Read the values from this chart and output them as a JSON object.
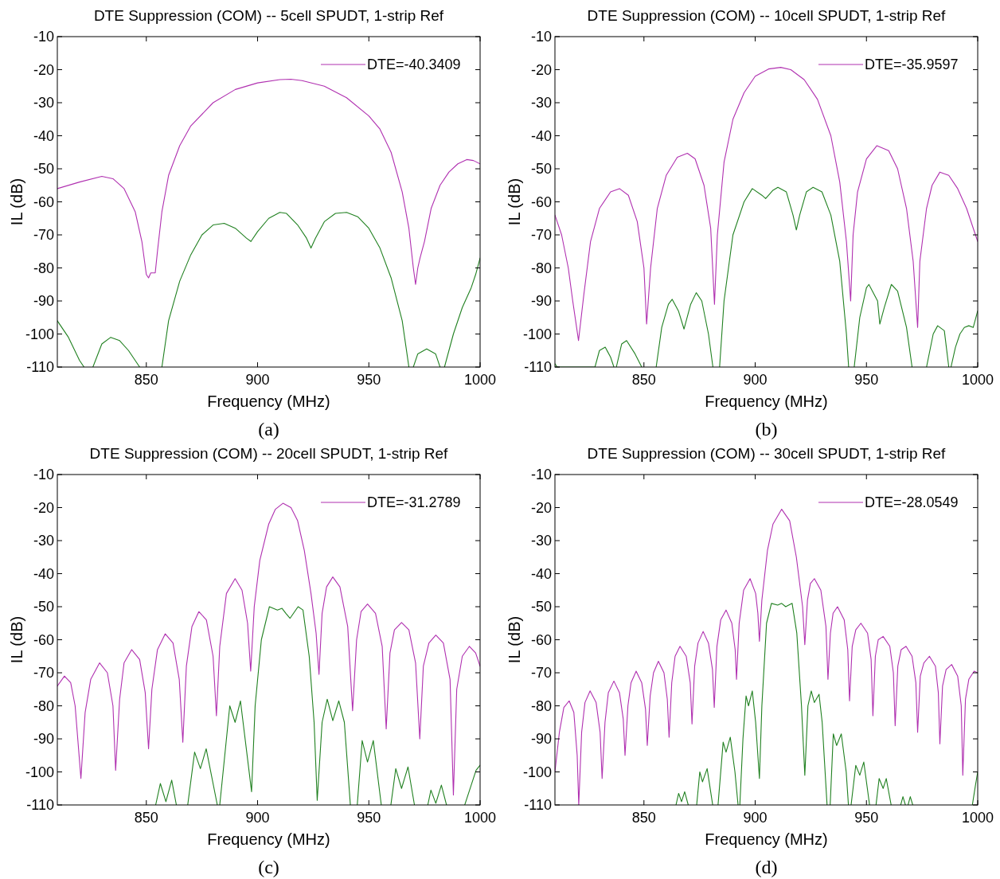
{
  "chart_data": [
    {
      "type": "line",
      "title": "DTE Suppression (COM) -- 5cell SPUDT, 1-strip Ref",
      "xlabel": "Frequency (MHz)",
      "ylabel": "IL (dB)",
      "annotations": [
        "(a)"
      ],
      "xlim": [
        810,
        1000
      ],
      "ylim": [
        -110,
        -10
      ],
      "xticks": [
        850,
        900,
        950,
        1000
      ],
      "yticks": [
        -110,
        -100,
        -90,
        -80,
        -70,
        -60,
        -50,
        -40,
        -30,
        -20,
        -10
      ],
      "legend": "top right",
      "series": [
        {
          "name": "DTE=-40.3409",
          "color": "#b030b0",
          "x": [
            810,
            820,
            830,
            835,
            840,
            845,
            848,
            850,
            851,
            852,
            854,
            855,
            857,
            860,
            865,
            870,
            880,
            890,
            900,
            910,
            915,
            920,
            930,
            940,
            950,
            955,
            960,
            965,
            968,
            970,
            971,
            972,
            973,
            975,
            978,
            982,
            986,
            990,
            994,
            997,
            1000
          ],
          "values": [
            -56,
            -54,
            -52.3,
            -53,
            -56,
            -63,
            -72,
            -82,
            -83,
            -81.5,
            -81.5,
            -75,
            -63,
            -52,
            -43,
            -37,
            -30,
            -26,
            -24,
            -23,
            -22.9,
            -23.3,
            -25,
            -28.5,
            -34,
            -38,
            -45,
            -57,
            -68,
            -80,
            -85,
            -80,
            -77,
            -72,
            -62,
            -55,
            -51,
            -48.5,
            -47.2,
            -47.5,
            -48.5
          ]
        },
        {
          "color": "#208020",
          "x": [
            810,
            815,
            820,
            822,
            824,
            826,
            830,
            834,
            838,
            842,
            847,
            852,
            857,
            860,
            865,
            870,
            875,
            880,
            885,
            890,
            895,
            897,
            900,
            905,
            910,
            913,
            918,
            922,
            924,
            926,
            930,
            935,
            940,
            945,
            950,
            955,
            960,
            965,
            968,
            969,
            970,
            972,
            976,
            980,
            982,
            983,
            984,
            988,
            992,
            996,
            998,
            1000
          ],
          "values": [
            -96,
            -101,
            -108,
            -110,
            null,
            -110,
            -103,
            -101,
            -102,
            -105,
            -110,
            null,
            -110,
            -96,
            -84,
            -76,
            -70,
            -67,
            -66.5,
            -68,
            -71,
            -72,
            -69,
            -65,
            -63.2,
            -63.5,
            -67,
            -71,
            -74,
            -71,
            -66,
            -63.5,
            -63.2,
            -64.5,
            -68,
            -74,
            -83,
            -96,
            -110,
            null,
            -110,
            -106,
            -104.5,
            -106,
            -110,
            null,
            -110,
            -100,
            -92,
            -86,
            -82,
            -77
          ]
        }
      ]
    },
    {
      "type": "line",
      "title": "DTE Suppression (COM) -- 10cell SPUDT, 1-strip Ref",
      "xlabel": "Frequency (MHz)",
      "ylabel": "IL (dB)",
      "annotations": [
        "(b)"
      ],
      "xlim": [
        810,
        1000
      ],
      "ylim": [
        -110,
        -10
      ],
      "xticks": [
        850,
        900,
        950,
        1000
      ],
      "yticks": [
        -110,
        -100,
        -90,
        -80,
        -70,
        -60,
        -50,
        -40,
        -30,
        -20,
        -10
      ],
      "legend": "top right",
      "series": [
        {
          "name": "DTE=-35.9597",
          "color": "#b030b0",
          "x": [
            810,
            813,
            816,
            818,
            820.6,
            823,
            826,
            830,
            835,
            839,
            843,
            847,
            850,
            851.2,
            853,
            856,
            860,
            865,
            869.5,
            873,
            877,
            880,
            881.7,
            883,
            886,
            890,
            895,
            900,
            906,
            911.5,
            916,
            922,
            928,
            934,
            938,
            941,
            942.9,
            944,
            946,
            950,
            954.7,
            960,
            964,
            968,
            971,
            973,
            974,
            977,
            979.5,
            983,
            987,
            991,
            995,
            998,
            1000
          ],
          "values": [
            -64,
            -70,
            -80,
            -90,
            -102,
            -88,
            -72,
            -62,
            -57,
            -56,
            -58,
            -66,
            -80,
            -97,
            -80,
            -62,
            -52,
            -46.5,
            -45.3,
            -47,
            -55,
            -68,
            -91,
            -70,
            -48,
            -35,
            -27,
            -22,
            -19.8,
            -19.3,
            -20,
            -23,
            -29,
            -40,
            -54,
            -72,
            -90,
            -70,
            -57,
            -47,
            -43,
            -44.5,
            -50,
            -62,
            -78,
            -98,
            -78,
            -62,
            -55,
            -51,
            -52,
            -56,
            -62,
            -68,
            -72
          ]
        },
        {
          "color": "#208020",
          "x": [
            810,
            811,
            828,
            830,
            832.6,
            835,
            836.5,
            837,
            837.6,
            840,
            842.2,
            846,
            849,
            852,
            855.5,
            858,
            861,
            862.7,
            865.5,
            868,
            871,
            873.5,
            876,
            879,
            881,
            882.5,
            884,
            886,
            890,
            895,
            898.7,
            903,
            904.7,
            908,
            910.2,
            914,
            917,
            918.5,
            920,
            923,
            926,
            930,
            934,
            938,
            941,
            942,
            943,
            944.5,
            947,
            950,
            951.1,
            955,
            956,
            958,
            961.2,
            964,
            968,
            970.5,
            974,
            977,
            980,
            982,
            985,
            987,
            987.5,
            988,
            990,
            992,
            994,
            996,
            998,
            1000
          ],
          "values": [
            -109,
            -110,
            -110,
            -105,
            -104,
            -107,
            -110,
            null,
            -110,
            -103,
            -102,
            -106,
            -110,
            null,
            -110,
            -98,
            -91,
            -89.5,
            -93,
            -98.5,
            -91,
            -87.5,
            -90,
            -100,
            -110,
            null,
            -110,
            -90,
            -70,
            -60,
            -56,
            -58,
            -59,
            -56.5,
            -55.6,
            -57,
            -64,
            -68.5,
            -64,
            -57,
            -55.6,
            -57,
            -64,
            -78,
            -100,
            -110,
            null,
            -110,
            -95,
            -86,
            -85,
            -90,
            -97,
            -92,
            -85,
            -87,
            -98,
            -110,
            null,
            -110,
            -100,
            -97.5,
            -99,
            -110,
            null,
            -110,
            -104,
            -100,
            -98,
            -97.5,
            -98,
            -93
          ]
        }
      ]
    },
    {
      "type": "line",
      "title": "DTE Suppression (COM) -- 20cell SPUDT, 1-strip Ref",
      "xlabel": "Frequency (MHz)",
      "ylabel": "IL (dB)",
      "annotations": [
        "(c)"
      ],
      "xlim": [
        810,
        1000
      ],
      "ylim": [
        -110,
        -10
      ],
      "xticks": [
        850,
        900,
        950,
        1000
      ],
      "yticks": [
        -110,
        -100,
        -90,
        -80,
        -70,
        -60,
        -50,
        -40,
        -30,
        -20,
        -10
      ],
      "legend": "top right",
      "series": [
        {
          "name": "DTE=-31.2789",
          "color": "#b030b0",
          "x": [
            810,
            813.2,
            816,
            818,
            820.6,
            822.5,
            825,
            829,
            832.5,
            835,
            836.2,
            838,
            840,
            843.4,
            847,
            849.5,
            851,
            852.5,
            855,
            858.5,
            862,
            864.8,
            866.4,
            868,
            870.5,
            873.6,
            877,
            880,
            881.5,
            883,
            886,
            889.9,
            893,
            895.5,
            896.9,
            898.5,
            901,
            905,
            908,
            911.4,
            915,
            918,
            921,
            924,
            926.3,
            927.6,
            929,
            931,
            933.8,
            937,
            940.5,
            942.7,
            944.5,
            946.5,
            949.4,
            953,
            956,
            957.8,
            959.5,
            961.5,
            964.7,
            968,
            971,
            972.9,
            974.5,
            977,
            980.1,
            983.5,
            986.5,
            988,
            989.5,
            992,
            995.2,
            998,
            1000
          ],
          "values": [
            -74,
            -71,
            -73,
            -80,
            -102,
            -82,
            -72,
            -67,
            -70,
            -80,
            -99.5,
            -78,
            -67,
            -63,
            -66,
            -76,
            -93,
            -75,
            -63,
            -58.2,
            -61,
            -72,
            -91,
            -68,
            -56,
            -51.5,
            -54,
            -65,
            -83,
            -62,
            -46,
            -41.5,
            -45,
            -55,
            -69.5,
            -50,
            -36,
            -25,
            -20.5,
            -18.7,
            -20,
            -24,
            -33,
            -46,
            -58,
            -70.5,
            -52,
            -44,
            -41,
            -44,
            -56,
            -81.5,
            -60,
            -51.5,
            -49.2,
            -52,
            -62,
            -87,
            -64,
            -57,
            -54.8,
            -57,
            -67,
            -90,
            -68,
            -61,
            -58.6,
            -61,
            -72,
            -107,
            -75,
            -65,
            -62,
            -64,
            -68
          ]
        },
        {
          "color": "#208020",
          "x": [
            854.2,
            856.3,
            858.8,
            861.4,
            863.5,
            866,
            868.6,
            871.7,
            874.3,
            876.9,
            881.9,
            882.5,
            883,
            887.5,
            889.9,
            892.3,
            897.3,
            898.9,
            901.7,
            905.3,
            908.9,
            911,
            912.7,
            914.6,
            918.2,
            920.4,
            923.2,
            925.4,
            926.8,
            929,
            931.3,
            933.8,
            936.5,
            939,
            941.7,
            943,
            944.8,
            947,
            949.4,
            952,
            955.6,
            958,
            959.9,
            962.1,
            964.7,
            967.6,
            970.5,
            974,
            976.5,
            977.9,
            980.1,
            982.6,
            984.9,
            990,
            993.1,
            996,
            998.2,
            1000
          ],
          "values": [
            -110,
            -103.5,
            -109,
            -102.5,
            -110,
            null,
            -110,
            -94,
            -99,
            -93,
            -110,
            null,
            -110,
            -80,
            -85,
            -78.5,
            -106,
            -80,
            -60,
            -50,
            -51,
            -50.5,
            -52,
            -53.5,
            -50,
            -51,
            -65,
            -85,
            -108.6,
            -85,
            -78,
            -84.5,
            -78.5,
            -85,
            -110,
            null,
            -110,
            -90.5,
            -97,
            -90.5,
            -110,
            null,
            -110,
            -99,
            -105,
            -98.5,
            -110,
            null,
            -110,
            -105.5,
            -109.5,
            -104,
            -110,
            null,
            -110,
            -104,
            -99.5,
            -98
          ]
        }
      ]
    },
    {
      "type": "line",
      "title": "DTE Suppression (COM) -- 30cell SPUDT, 1-strip Ref",
      "xlabel": "Frequency (MHz)",
      "ylabel": "IL (dB)",
      "annotations": [
        "(d)"
      ],
      "xlim": [
        810,
        1000
      ],
      "ylim": [
        -110,
        -10
      ],
      "xticks": [
        850,
        900,
        950,
        1000
      ],
      "yticks": [
        -110,
        -100,
        -90,
        -80,
        -70,
        -60,
        -50,
        -40,
        -30,
        -20,
        -10
      ],
      "legend": "top right",
      "series": [
        {
          "name": "DTE=-28.0549",
          "color": "#b030b0",
          "x": [
            810,
            812,
            814,
            816.4,
            818.5,
            820,
            820.7,
            822,
            823.5,
            825.8,
            828.5,
            830.3,
            831.2,
            832.5,
            834,
            836.5,
            839,
            840.7,
            841.5,
            842.8,
            844.2,
            846.5,
            849,
            850.7,
            851.5,
            852.8,
            854.3,
            856.5,
            859,
            860.5,
            861.3,
            862.5,
            864,
            866.2,
            869,
            870.8,
            871.6,
            872.8,
            874.3,
            876.6,
            879,
            880.8,
            881.6,
            882.8,
            884.5,
            886.9,
            889.5,
            891,
            891.6,
            892.8,
            894.8,
            897.7,
            900.2,
            901.2,
            901.9,
            903,
            905.5,
            908,
            911.9,
            915.5,
            918.5,
            921.3,
            922.3,
            923.5,
            924.8,
            926.6,
            929.5,
            931.8,
            932.7,
            933.8,
            935,
            937,
            940,
            941.6,
            942.4,
            943.6,
            945.2,
            947.5,
            950.5,
            952.1,
            952.9,
            954,
            955.3,
            957.5,
            960.5,
            962.1,
            962.9,
            964.1,
            965.6,
            967.8,
            970.5,
            972.2,
            973,
            974.2,
            975.8,
            978.3,
            981,
            982.3,
            983,
            984.2,
            985.8,
            988.3,
            991,
            992.6,
            993.3,
            994.5,
            996,
            998.4,
            1000
          ],
          "values": [
            -100,
            -88,
            -80.5,
            -78.5,
            -82,
            -95,
            -110,
            -88,
            -79,
            -75.5,
            -79,
            -88,
            -102,
            -85,
            -76,
            -72.5,
            -76,
            -84,
            -95,
            -80,
            -73,
            -69.5,
            -73,
            -81,
            -92,
            -77,
            -70,
            -66.5,
            -70,
            -78,
            -89.5,
            -73,
            -65,
            -62,
            -65,
            -73,
            -85.5,
            -68,
            -61,
            -57.5,
            -61,
            -69,
            -80.5,
            -62,
            -54,
            -51,
            -55,
            -63,
            -72,
            -55,
            -45,
            -41.5,
            -46,
            -52,
            -60.5,
            -48,
            -33,
            -25,
            -20.5,
            -24,
            -35,
            -50,
            -61.5,
            -48,
            -43,
            -41.5,
            -45,
            -56,
            -72,
            -58,
            -52,
            -50,
            -54,
            -63,
            -78.5,
            -62,
            -57,
            -55,
            -58,
            -66,
            -83,
            -65,
            -60,
            -59,
            -62,
            -70,
            -86,
            -68,
            -63,
            -62,
            -65,
            -73,
            -88,
            -71,
            -67,
            -65,
            -68,
            -76,
            -91.5,
            -74,
            -69,
            -67.5,
            -71,
            -80,
            -101,
            -78,
            -72,
            -69.5,
            -70
          ]
        },
        {
          "color": "#208020",
          "x": [
            864.4,
            865.6,
            866.9,
            868.3,
            869.9,
            872,
            873.7,
            875.1,
            876.3,
            878.4,
            880.9,
            882,
            883.3,
            885.6,
            886.9,
            888.8,
            890.9,
            892.3,
            892.7,
            893.1,
            894.5,
            895.9,
            897,
            898.7,
            900.2,
            901.9,
            903,
            905.1,
            907.3,
            910.1,
            911.9,
            913.7,
            916.6,
            918.7,
            920.8,
            922.3,
            923.7,
            925.2,
            926.6,
            928.7,
            930.1,
            932.3,
            933,
            933.7,
            935.1,
            936.6,
            938.7,
            940.9,
            941.9,
            942.5,
            943.1,
            945.2,
            947,
            948.8,
            951.4,
            953,
            954.3,
            955.7,
            957.5,
            958.9,
            961.1,
            963,
            965.4,
            966.4,
            967.5,
            968,
            968.7,
            969.7,
            970.8,
            985,
            997.6,
            999,
            1000
          ],
          "values": [
            -110,
            -106.5,
            -109,
            -106,
            -110,
            null,
            -110,
            -100,
            -103,
            -99,
            -110,
            null,
            -110,
            -91,
            -94,
            -89.5,
            -100,
            -110,
            null,
            -110,
            -90,
            -77,
            -80,
            -75.5,
            -85,
            -102,
            -80,
            -55,
            -49,
            -49.5,
            -49,
            -50,
            -49,
            -58,
            -80,
            -101,
            -80,
            -75.5,
            -79,
            -76.5,
            -85,
            -110,
            null,
            -110,
            -88.5,
            -92,
            -88.5,
            -100,
            -110,
            null,
            -110,
            -98,
            -101,
            -97,
            -110,
            null,
            -110,
            -102,
            -105,
            -102,
            -110,
            null,
            -110,
            -107.5,
            -110,
            null,
            -110,
            -107.5,
            -110,
            null,
            -110,
            -104,
            -100
          ]
        }
      ]
    }
  ]
}
